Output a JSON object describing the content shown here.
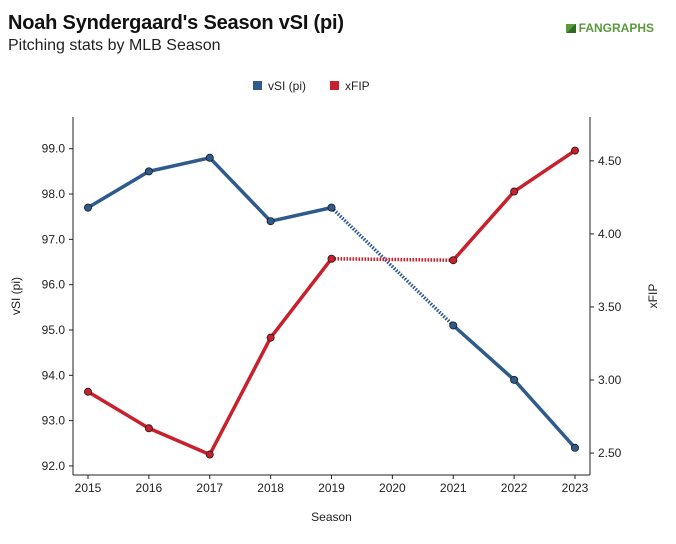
{
  "header": {
    "title": "Noah Syndergaard's Season vSI (pi)",
    "subtitle": "Pitching stats by MLB Season",
    "logo_text": "FANGRAPHS"
  },
  "colors": {
    "vsi": "#2e5a8c",
    "xfip": "#c8202c",
    "axis": "#222222"
  },
  "chart_data": {
    "type": "line",
    "title": "Noah Syndergaard's Season vSI (pi)",
    "subtitle": "Pitching stats by MLB Season",
    "xlabel": "Season",
    "ylabel_left": "vSI (pi)",
    "ylabel_right": "xFIP",
    "x": [
      2015,
      2016,
      2017,
      2018,
      2019,
      2020,
      2021,
      2022,
      2023
    ],
    "x_tick_labels": [
      "2015",
      "2016",
      "2017",
      "2018",
      "2019",
      "2020",
      "2021",
      "2022",
      "2023"
    ],
    "left_ticks": [
      "92.0",
      "93.0",
      "94.0",
      "95.0",
      "96.0",
      "97.0",
      "98.0",
      "99.0"
    ],
    "right_ticks": [
      "2.50",
      "3.00",
      "3.50",
      "4.00",
      "4.50"
    ],
    "left_ylim": [
      91.8,
      99.7
    ],
    "right_ylim": [
      2.35,
      4.8
    ],
    "legend_position": "top-center",
    "grid": false,
    "series": [
      {
        "name": "vSI (pi)",
        "axis": "left",
        "color": "#2e5a8c",
        "values": [
          97.7,
          98.5,
          98.8,
          97.4,
          97.7,
          null,
          95.1,
          93.9,
          92.4
        ]
      },
      {
        "name": "xFIP",
        "axis": "right",
        "color": "#c8202c",
        "values": [
          2.92,
          2.67,
          2.49,
          3.29,
          3.83,
          null,
          3.82,
          4.29,
          4.57
        ]
      }
    ]
  }
}
